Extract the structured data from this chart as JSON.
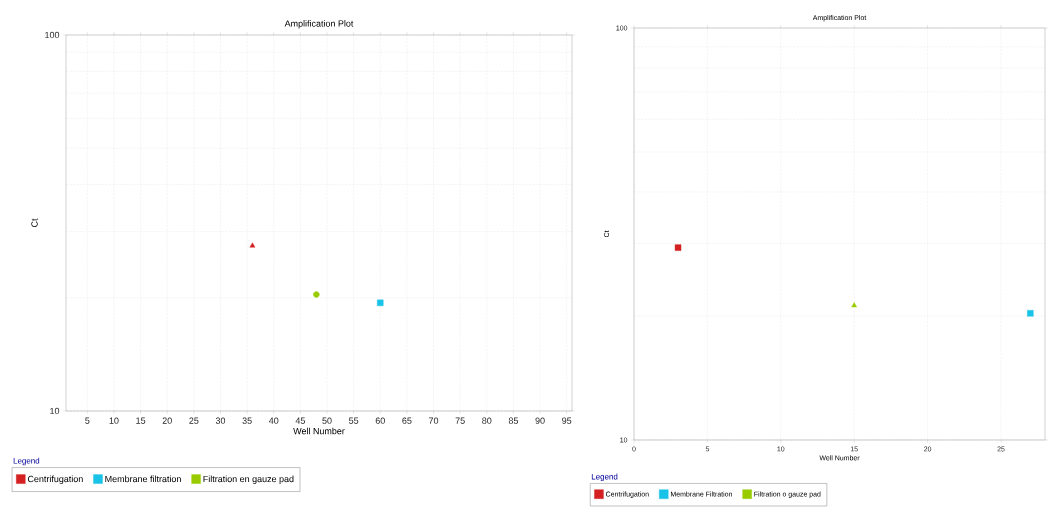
{
  "chart_data": [
    {
      "type": "scatter",
      "title": "Amplification Plot",
      "xlabel": "Well Number",
      "ylabel": "Ct",
      "legend_title": "Legend",
      "xlim": [
        1,
        96
      ],
      "ylim": [
        10,
        100
      ],
      "xticks": [
        5,
        10,
        15,
        20,
        25,
        30,
        35,
        40,
        45,
        50,
        55,
        60,
        65,
        70,
        75,
        80,
        85,
        90,
        95
      ],
      "yticks": [
        10,
        100
      ],
      "log": "y",
      "grid": true,
      "legend": "bottom",
      "series": [
        {
          "name": "Centrifugation",
          "color": "#d42020",
          "marker": "triangle",
          "x": [
            36
          ],
          "values": [
            27.5
          ]
        },
        {
          "name": "Membrane  filtration",
          "color": "#19c3e8",
          "marker": "square",
          "x": [
            60
          ],
          "values": [
            19.4
          ]
        },
        {
          "name": "Filtration en gauze pad",
          "color": "#99cc00",
          "marker": "circle",
          "x": [
            48
          ],
          "values": [
            20.4
          ]
        }
      ]
    },
    {
      "type": "scatter",
      "title": "Amplification Plot",
      "xlabel": "Well Number",
      "ylabel": "Ct",
      "legend_title": "Legend",
      "xlim": [
        0,
        28
      ],
      "ylim": [
        10,
        100
      ],
      "xticks": [
        0,
        5,
        10,
        15,
        20,
        25
      ],
      "yticks": [
        10,
        100
      ],
      "log": "y",
      "grid": true,
      "legend": "bottom",
      "series": [
        {
          "name": "Centrifugation",
          "color": "#d42020",
          "marker": "square",
          "x": [
            3
          ],
          "values": [
            29.3
          ]
        },
        {
          "name": "Membrane Filtration",
          "color": "#19c3e8",
          "marker": "square",
          "x": [
            27
          ],
          "values": [
            20.3
          ]
        },
        {
          "name": "Filtration o gauze pad",
          "color": "#99cc00",
          "marker": "triangle",
          "x": [
            15
          ],
          "values": [
            21.2
          ]
        }
      ]
    }
  ]
}
